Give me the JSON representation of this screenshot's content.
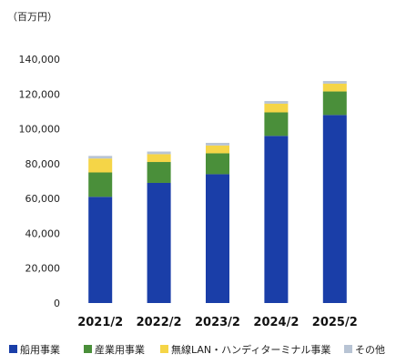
{
  "chart_data": {
    "type": "bar",
    "stacked": true,
    "unit_label": "（百万円）",
    "categories": [
      "2021/2",
      "2022/2",
      "2023/2",
      "2024/2",
      "2025/2"
    ],
    "ylim": [
      0,
      150000
    ],
    "yticks": [
      0,
      20000,
      40000,
      60000,
      80000,
      100000,
      120000,
      140000
    ],
    "ytick_labels": [
      "0",
      "20,000",
      "40,000",
      "60,000",
      "80,000",
      "100,000",
      "120,000",
      "140,000"
    ],
    "grid": false,
    "legend_position": "bottom",
    "series": [
      {
        "name": "船用事業",
        "color": "#1a3ea8",
        "values": [
          61000,
          69000,
          74000,
          96000,
          108000
        ]
      },
      {
        "name": "産業用事業",
        "color": "#4a8f3a",
        "values": [
          14000,
          12000,
          12000,
          13500,
          13500
        ]
      },
      {
        "name": "無線LAN・ハンディターミナル事業",
        "color": "#f5d547",
        "values": [
          8000,
          4500,
          4500,
          5000,
          4500
        ]
      },
      {
        "name": "その他",
        "color": "#b8c4d4",
        "values": [
          1500,
          1500,
          1500,
          1500,
          1500
        ]
      }
    ]
  }
}
